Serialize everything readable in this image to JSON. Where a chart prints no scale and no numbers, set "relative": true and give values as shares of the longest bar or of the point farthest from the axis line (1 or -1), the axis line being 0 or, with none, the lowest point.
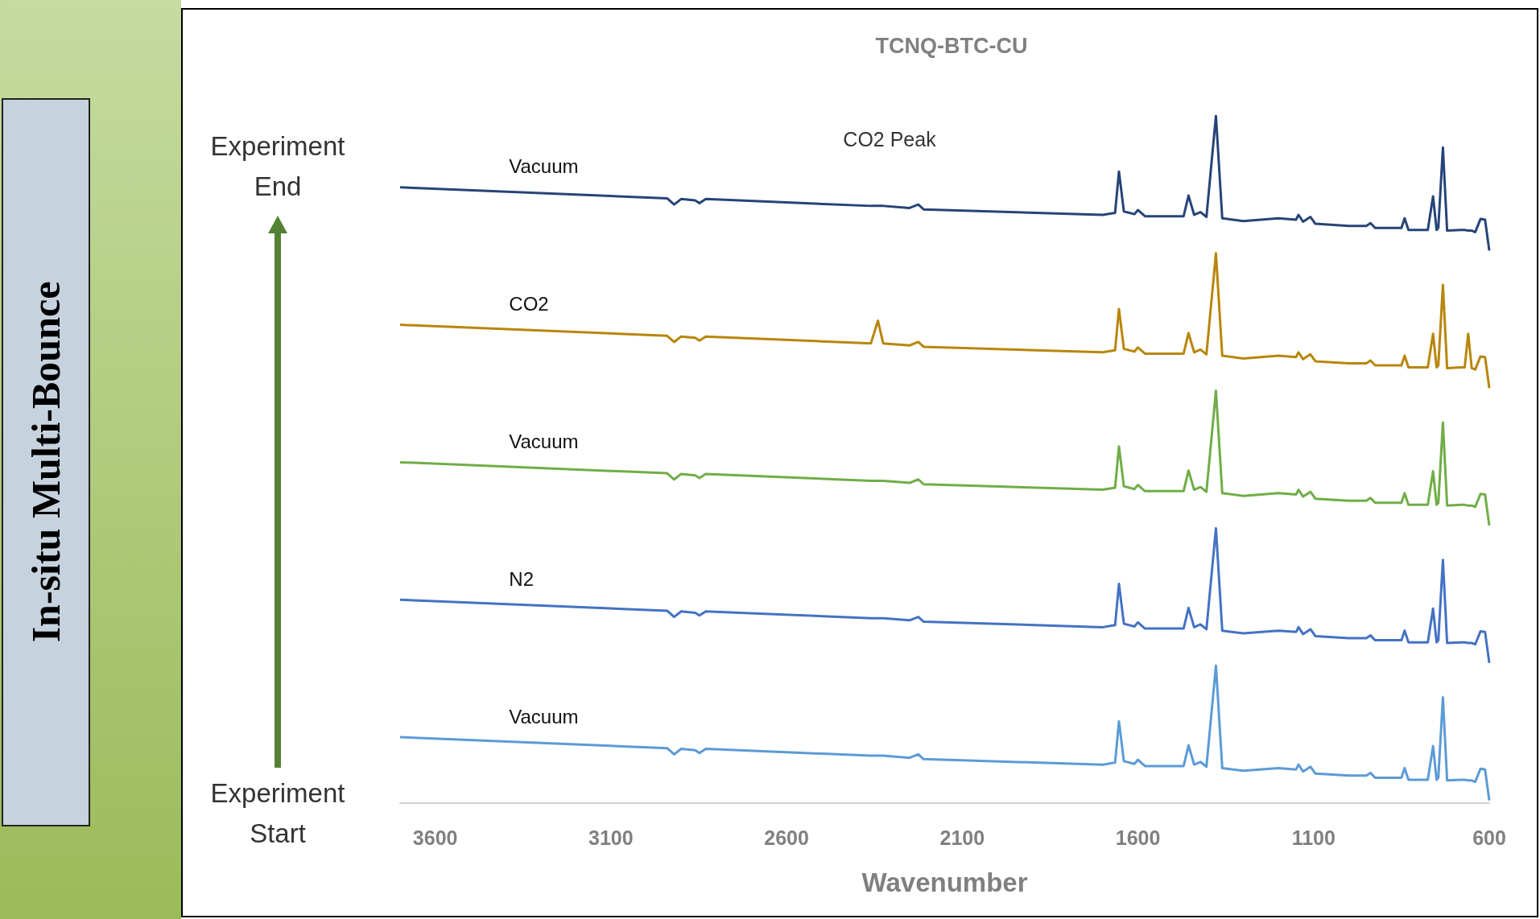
{
  "chart_data": {
    "type": "line",
    "title": "TCNQ-BTC-CU",
    "xlabel": "Wavenumber",
    "relative": true,
    "annotations": [
      "CO2 Peak",
      "Experiment End",
      "Experiment Start",
      "In-situ Multi-Bounce"
    ],
    "xlim": [
      3700,
      600
    ],
    "xticks": [
      3600,
      3100,
      2600,
      2100,
      1600,
      1100,
      600
    ],
    "grid": false,
    "x": [
      3700,
      2940,
      2920,
      2900,
      2860,
      2848,
      2830,
      2360,
      2340,
      2325,
      2250,
      2225,
      2210,
      1700,
      1665,
      1654,
      1640,
      1610,
      1600,
      1580,
      1470,
      1456,
      1440,
      1422,
      1405,
      1378,
      1360,
      1300,
      1200,
      1150,
      1143,
      1130,
      1109,
      1095,
      1000,
      950,
      938,
      925,
      850,
      841,
      830,
      775,
      760,
      750,
      745,
      732,
      720,
      680,
      670,
      660,
      650,
      640,
      625,
      612,
      600
    ],
    "series": [
      {
        "name": "Vacuum",
        "color": "#264478",
        "values": [
          0.896,
          0.88,
          0.871,
          0.879,
          0.877,
          0.873,
          0.879,
          0.869,
          0.869,
          0.869,
          0.866,
          0.871,
          0.864,
          0.856,
          0.859,
          0.919,
          0.861,
          0.857,
          0.863,
          0.854,
          0.854,
          0.884,
          0.856,
          0.86,
          0.853,
          1,
          0.851,
          0.847,
          0.851,
          0.849,
          0.856,
          0.846,
          0.853,
          0.843,
          0.84,
          0.84,
          0.844,
          0.837,
          0.837,
          0.851,
          0.834,
          0.834,
          0.883,
          0.834,
          0.837,
          0.954,
          0.833,
          0.834,
          0.834,
          0.833,
          0.833,
          0.831,
          0.85,
          0.849,
          0.804
        ]
      },
      {
        "name": "CO2",
        "color": "#b8860b",
        "values": [
          0.696,
          0.68,
          0.671,
          0.679,
          0.677,
          0.673,
          0.679,
          0.669,
          0.702,
          0.669,
          0.666,
          0.671,
          0.664,
          0.656,
          0.659,
          0.719,
          0.661,
          0.657,
          0.663,
          0.654,
          0.654,
          0.684,
          0.656,
          0.66,
          0.653,
          0.8,
          0.651,
          0.647,
          0.651,
          0.649,
          0.656,
          0.646,
          0.653,
          0.643,
          0.64,
          0.64,
          0.644,
          0.637,
          0.637,
          0.651,
          0.634,
          0.634,
          0.683,
          0.634,
          0.637,
          0.754,
          0.633,
          0.634,
          0.634,
          0.683,
          0.633,
          0.631,
          0.65,
          0.649,
          0.604
        ]
      },
      {
        "name": "Vacuum",
        "color": "#70ad47",
        "values": [
          0.496,
          0.48,
          0.471,
          0.479,
          0.477,
          0.473,
          0.479,
          0.469,
          0.469,
          0.469,
          0.466,
          0.471,
          0.464,
          0.456,
          0.459,
          0.519,
          0.461,
          0.457,
          0.463,
          0.454,
          0.454,
          0.484,
          0.456,
          0.46,
          0.453,
          0.6,
          0.451,
          0.447,
          0.451,
          0.449,
          0.456,
          0.446,
          0.453,
          0.443,
          0.44,
          0.44,
          0.444,
          0.437,
          0.437,
          0.451,
          0.434,
          0.434,
          0.483,
          0.434,
          0.437,
          0.554,
          0.433,
          0.434,
          0.434,
          0.433,
          0.433,
          0.431,
          0.45,
          0.449,
          0.404
        ]
      },
      {
        "name": "N2",
        "color": "#4472c4",
        "values": [
          0.296,
          0.28,
          0.271,
          0.279,
          0.277,
          0.273,
          0.279,
          0.269,
          0.269,
          0.269,
          0.266,
          0.271,
          0.264,
          0.256,
          0.259,
          0.319,
          0.261,
          0.257,
          0.263,
          0.254,
          0.254,
          0.284,
          0.256,
          0.26,
          0.253,
          0.4,
          0.251,
          0.247,
          0.251,
          0.249,
          0.256,
          0.246,
          0.253,
          0.243,
          0.24,
          0.24,
          0.244,
          0.237,
          0.237,
          0.251,
          0.234,
          0.234,
          0.283,
          0.234,
          0.237,
          0.354,
          0.233,
          0.234,
          0.234,
          0.233,
          0.233,
          0.231,
          0.25,
          0.249,
          0.204
        ]
      },
      {
        "name": "Vacuum",
        "color": "#5b9bd5",
        "values": [
          0.096,
          0.08,
          0.071,
          0.079,
          0.077,
          0.073,
          0.079,
          0.069,
          0.069,
          0.069,
          0.066,
          0.071,
          0.064,
          0.056,
          0.059,
          0.119,
          0.061,
          0.057,
          0.063,
          0.054,
          0.054,
          0.084,
          0.056,
          0.06,
          0.053,
          0.2,
          0.051,
          0.047,
          0.051,
          0.049,
          0.056,
          0.046,
          0.053,
          0.043,
          0.04,
          0.04,
          0.044,
          0.037,
          0.037,
          0.051,
          0.034,
          0.034,
          0.083,
          0.034,
          0.037,
          0.154,
          0.033,
          0.034,
          0.034,
          0.033,
          0.033,
          0.031,
          0.05,
          0.049,
          0.004
        ]
      }
    ]
  }
}
